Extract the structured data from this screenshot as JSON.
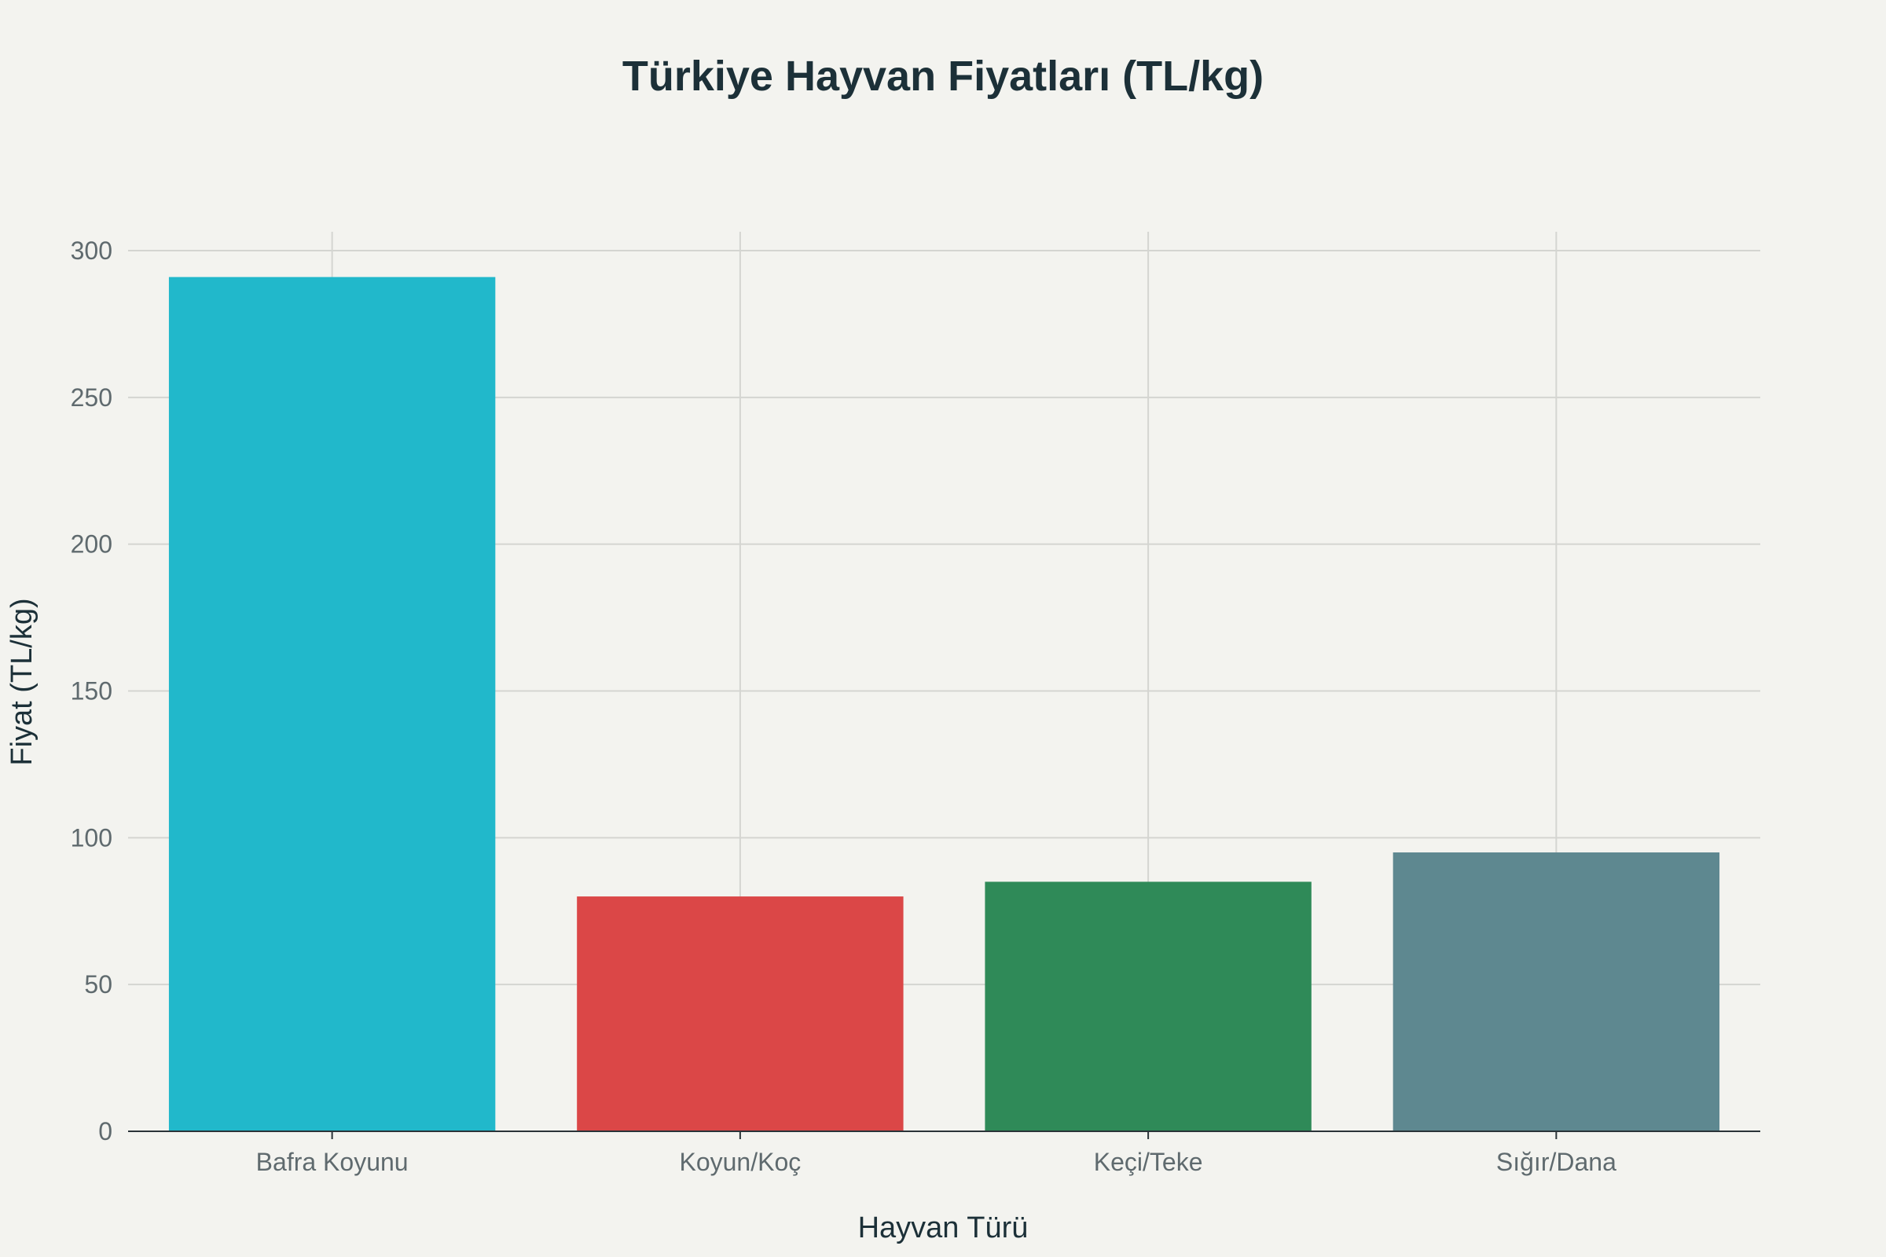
{
  "chart_data": {
    "type": "bar",
    "title": "Türkiye Hayvan Fiyatları (TL/kg)",
    "xlabel": "Hayvan Türü",
    "ylabel": "Fiyat (TL/kg)",
    "categories": [
      "Bafra Koyunu",
      "Koyun/Koç",
      "Keçi/Teke",
      "Sığır/Dana"
    ],
    "values": [
      291,
      80,
      85,
      95
    ],
    "colors": [
      "#21b8cb",
      "#db4747",
      "#2f8a58",
      "#5e8890"
    ],
    "ylim": [
      0,
      300
    ],
    "yticks": [
      0,
      50,
      100,
      150,
      200,
      250,
      300
    ],
    "grid": true,
    "legend": "none"
  },
  "theme": {
    "background": "#f3f3ef",
    "text": "#1c3038",
    "tick_text": "#5f6a6e",
    "grid": "#d4d5d1"
  }
}
